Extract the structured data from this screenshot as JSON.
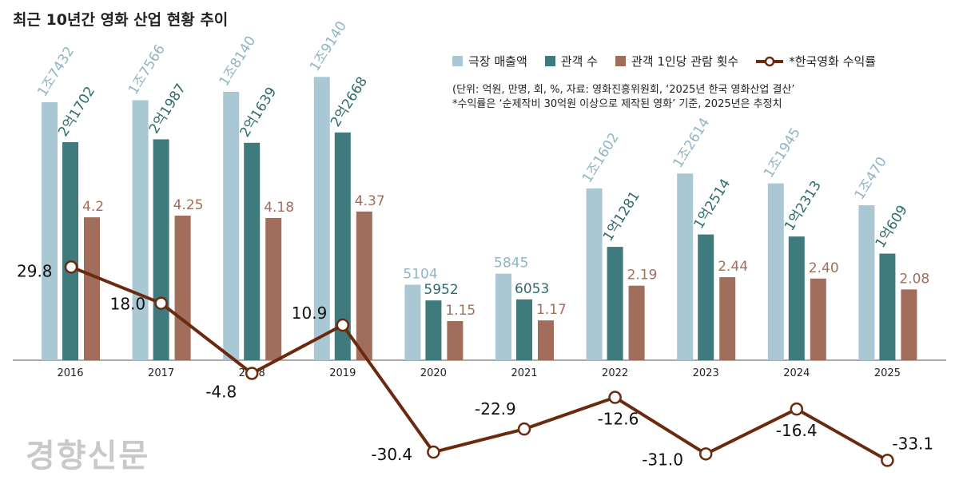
{
  "chart_data": {
    "type": "bar+line",
    "title": "최근 10년간 영화 산업 현황 추이",
    "categories": [
      "2016",
      "2017",
      "2018",
      "2019",
      "2020",
      "2021",
      "2022",
      "2023",
      "2024",
      "2025"
    ],
    "series": [
      {
        "name": "극장 매출액",
        "type": "bar",
        "color": "#a9c8d3",
        "values": [
          17432,
          17566,
          18140,
          19140,
          5104,
          5845,
          11602,
          12614,
          11945,
          10470
        ],
        "labels": [
          "1조7432",
          "1조7566",
          "1조8140",
          "1조9140",
          "5104",
          "5845",
          "1조1602",
          "1조2614",
          "1조1945",
          "1조470"
        ]
      },
      {
        "name": "관객 수",
        "type": "bar",
        "color": "#3f7a7d",
        "values": [
          21702,
          21987,
          21639,
          22668,
          5952,
          6053,
          11281,
          12514,
          12313,
          10609
        ],
        "labels": [
          "2억1702",
          "2억1987",
          "2억1639",
          "2억2668",
          "5952",
          "6053",
          "1억1281",
          "1억2514",
          "1억2313",
          "1억609"
        ]
      },
      {
        "name": "관객 1인당 관람 횟수",
        "type": "bar",
        "color": "#a06e5a",
        "values": [
          4.2,
          4.25,
          4.18,
          4.37,
          1.15,
          1.17,
          2.19,
          2.44,
          2.4,
          2.08
        ],
        "labels": [
          "4.2",
          "4.25",
          "4.18",
          "4.37",
          "1.15",
          "1.17",
          "2.19",
          "2.44",
          "2.40",
          "2.08"
        ]
      },
      {
        "name": "*한국영화 수익률",
        "type": "line",
        "color": "#6b2a0e",
        "values": [
          29.8,
          18.0,
          -4.8,
          10.9,
          -30.4,
          -22.9,
          -12.6,
          -31.0,
          -16.4,
          -33.1
        ],
        "labels": [
          "29.8",
          "18.0",
          "-4.8",
          "10.9",
          "-30.4",
          "-22.9",
          "-12.6",
          "-31.0",
          "-16.4",
          "-33.1"
        ]
      }
    ],
    "legend": "top-right",
    "grid": false,
    "notes": [
      "(단위: 억원, 만명, 회, %, 자료: 영화진흥위원회, ‘2025년 한국 영화산업 결산’",
      "*수익률은 ‘순제작비 30억원 이상으로 제작된 영화’ 기준, 2025년은 추정치"
    ]
  },
  "logo": "경향신문"
}
